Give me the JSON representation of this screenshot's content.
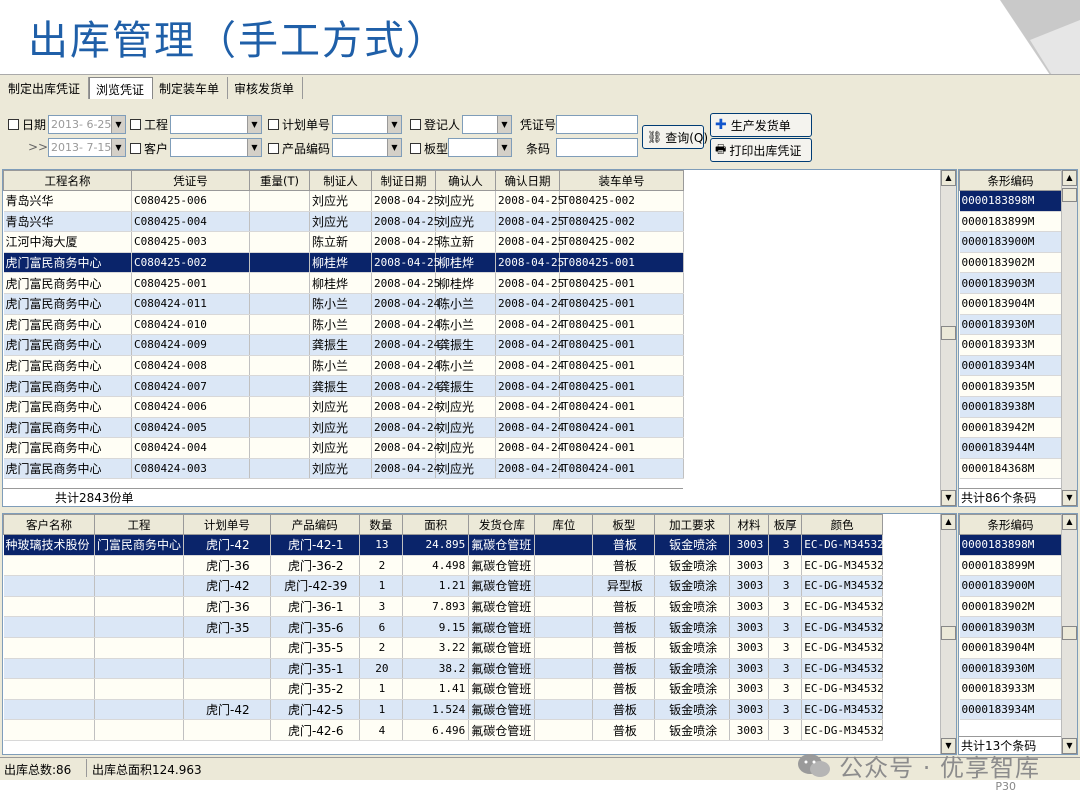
{
  "slide": {
    "title": "出库管理（手工方式）",
    "page_number": "P30"
  },
  "tabs": [
    "制定出库凭证",
    "浏览凭证",
    "制定装车单",
    "审核发货单"
  ],
  "filters": {
    "date_label": "日期",
    "date_from": "2013- 6-25",
    "date_to_prefix": ">>>",
    "date_to": "2013- 7-15",
    "project_label": "工程",
    "customer_label": "客户",
    "plan_no_label": "计划单号",
    "product_code_label": "产品编码",
    "registrar_label": "登记人",
    "board_type_label": "板型",
    "voucher_no_label": "凭证号",
    "barcode_label": "条码"
  },
  "buttons": {
    "query": "查询(Q)",
    "production_dispatch": "生产发货单",
    "print_voucher": "打印出库凭证"
  },
  "top_grid": {
    "columns": [
      "工程名称",
      "凭证号",
      "重量(T)",
      "制证人",
      "制证日期",
      "确认人",
      "确认日期",
      "装车单号"
    ],
    "rows": [
      [
        "青岛兴华",
        "C080425-006",
        "",
        "刘应光",
        "2008-04-25",
        "刘应光",
        "2008-04-25",
        "T080425-002"
      ],
      [
        "青岛兴华",
        "C080425-004",
        "",
        "刘应光",
        "2008-04-25",
        "刘应光",
        "2008-04-25",
        "T080425-002"
      ],
      [
        "江河中海大厦",
        "C080425-003",
        "",
        "陈立新",
        "2008-04-25",
        "陈立新",
        "2008-04-25",
        "T080425-002"
      ],
      [
        "虎门富民商务中心",
        "C080425-002",
        "",
        "柳桂烨",
        "2008-04-25",
        "柳桂烨",
        "2008-04-25",
        "T080425-001"
      ],
      [
        "虎门富民商务中心",
        "C080425-001",
        "",
        "柳桂烨",
        "2008-04-25",
        "柳桂烨",
        "2008-04-25",
        "T080425-001"
      ],
      [
        "虎门富民商务中心",
        "C080424-011",
        "",
        "陈小兰",
        "2008-04-24",
        "陈小兰",
        "2008-04-24",
        "T080425-001"
      ],
      [
        "虎门富民商务中心",
        "C080424-010",
        "",
        "陈小兰",
        "2008-04-24",
        "陈小兰",
        "2008-04-24",
        "T080425-001"
      ],
      [
        "虎门富民商务中心",
        "C080424-009",
        "",
        "龚振生",
        "2008-04-24",
        "龚振生",
        "2008-04-24",
        "T080425-001"
      ],
      [
        "虎门富民商务中心",
        "C080424-008",
        "",
        "陈小兰",
        "2008-04-24",
        "陈小兰",
        "2008-04-24",
        "T080425-001"
      ],
      [
        "虎门富民商务中心",
        "C080424-007",
        "",
        "龚振生",
        "2008-04-24",
        "龚振生",
        "2008-04-24",
        "T080425-001"
      ],
      [
        "虎门富民商务中心",
        "C080424-006",
        "",
        "刘应光",
        "2008-04-24",
        "刘应光",
        "2008-04-24",
        "T080424-001"
      ],
      [
        "虎门富民商务中心",
        "C080424-005",
        "",
        "刘应光",
        "2008-04-24",
        "刘应光",
        "2008-04-24",
        "T080424-001"
      ],
      [
        "虎门富民商务中心",
        "C080424-004",
        "",
        "刘应光",
        "2008-04-24",
        "刘应光",
        "2008-04-24",
        "T080424-001"
      ],
      [
        "虎门富民商务中心",
        "C080424-003",
        "",
        "刘应光",
        "2008-04-24",
        "刘应光",
        "2008-04-24",
        "T080424-001"
      ]
    ],
    "selected_row": 3,
    "total": "共计2843份单"
  },
  "top_barcodes": {
    "header": "条形编码",
    "items": [
      "0000183898M",
      "0000183899M",
      "0000183900M",
      "0000183902M",
      "0000183903M",
      "0000183904M",
      "0000183930M",
      "0000183933M",
      "0000183934M",
      "0000183935M",
      "0000183938M",
      "0000183942M",
      "0000183944M",
      "0000184368M"
    ],
    "selected": 0,
    "total": "共计86个条码"
  },
  "bottom_grid": {
    "columns": [
      "客户名称",
      "工程",
      "计划单号",
      "产品编码",
      "数量",
      "面积",
      "发货仓库",
      "库位",
      "板型",
      "加工要求",
      "材料",
      "板厚",
      "颜色"
    ],
    "rows": [
      [
        "种玻璃技术股份",
        "门富民商务中心",
        "虎门-42",
        "虎门-42-1",
        "13",
        "24.895",
        "氟碳仓管班",
        "",
        "普板",
        "钣金喷涂",
        "3003",
        "3",
        "EC-DG-M34532"
      ],
      [
        "",
        "",
        "虎门-36",
        "虎门-36-2",
        "2",
        "4.498",
        "氟碳仓管班",
        "",
        "普板",
        "钣金喷涂",
        "3003",
        "3",
        "EC-DG-M34532"
      ],
      [
        "",
        "",
        "虎门-42",
        "虎门-42-39",
        "1",
        "1.21",
        "氟碳仓管班",
        "",
        "异型板",
        "钣金喷涂",
        "3003",
        "3",
        "EC-DG-M34532"
      ],
      [
        "",
        "",
        "虎门-36",
        "虎门-36-1",
        "3",
        "7.893",
        "氟碳仓管班",
        "",
        "普板",
        "钣金喷涂",
        "3003",
        "3",
        "EC-DG-M34532"
      ],
      [
        "",
        "",
        "虎门-35",
        "虎门-35-6",
        "6",
        "9.15",
        "氟碳仓管班",
        "",
        "普板",
        "钣金喷涂",
        "3003",
        "3",
        "EC-DG-M34532"
      ],
      [
        "",
        "",
        "",
        "虎门-35-5",
        "2",
        "3.22",
        "氟碳仓管班",
        "",
        "普板",
        "钣金喷涂",
        "3003",
        "3",
        "EC-DG-M34532"
      ],
      [
        "",
        "",
        "",
        "虎门-35-1",
        "20",
        "38.2",
        "氟碳仓管班",
        "",
        "普板",
        "钣金喷涂",
        "3003",
        "3",
        "EC-DG-M34532"
      ],
      [
        "",
        "",
        "",
        "虎门-35-2",
        "1",
        "1.41",
        "氟碳仓管班",
        "",
        "普板",
        "钣金喷涂",
        "3003",
        "3",
        "EC-DG-M34532"
      ],
      [
        "",
        "",
        "虎门-42",
        "虎门-42-5",
        "1",
        "1.524",
        "氟碳仓管班",
        "",
        "普板",
        "钣金喷涂",
        "3003",
        "3",
        "EC-DG-M34532"
      ],
      [
        "",
        "",
        "",
        "虎门-42-6",
        "4",
        "6.496",
        "氟碳仓管班",
        "",
        "普板",
        "钣金喷涂",
        "3003",
        "3",
        "EC-DG-M34532"
      ]
    ],
    "selected_row": 0
  },
  "bottom_barcodes": {
    "header": "条形编码",
    "items": [
      "0000183898M",
      "0000183899M",
      "0000183900M",
      "0000183902M",
      "0000183903M",
      "0000183904M",
      "0000183930M",
      "0000183933M",
      "0000183934M"
    ],
    "selected": 0,
    "total": "共计13个条码"
  },
  "status": {
    "total_count": "出库总数:86",
    "total_area": "出库总面积124.963"
  },
  "watermark": {
    "text": "公众号 · 优享智库"
  }
}
